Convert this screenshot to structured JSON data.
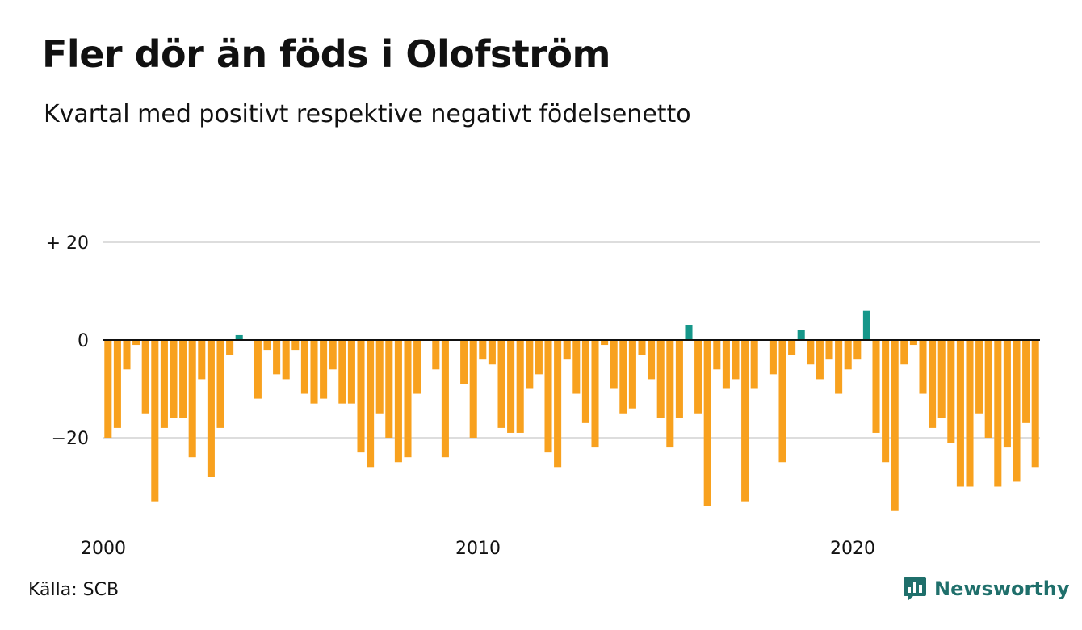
{
  "header": {
    "title": "Fler dör än föds i Olofström",
    "subtitle": "Kvartal med positivt respektive negativt födelsenetto"
  },
  "footer": {
    "source": "Källa: SCB",
    "brand": "Newsworthy"
  },
  "colors": {
    "negative": "#f8a11e",
    "positive": "#16978a",
    "grid": "#dddddd",
    "zero_line": "#111111",
    "brand": "#1f6f6b"
  },
  "icons": {
    "brand_logo": "newsworthy-logo-icon"
  },
  "chart_data": {
    "type": "bar",
    "title": "Fler dör än föds i Olofström",
    "subtitle": "Kvartal med positivt respektive negativt födelsenetto",
    "x_start": 2000,
    "periods_per_year": 4,
    "ylim": [
      -35,
      20
    ],
    "y_ticks": [
      {
        "value": 20,
        "label": "+ 20"
      },
      {
        "value": 0,
        "label": "0"
      },
      {
        "value": -20,
        "label": "−20"
      }
    ],
    "x_ticks": [
      {
        "value": 2000,
        "label": "2000"
      },
      {
        "value": 2010,
        "label": "2010"
      },
      {
        "value": 2020,
        "label": "2020"
      }
    ],
    "grid": true,
    "values": [
      -20,
      -18,
      -6,
      -1,
      -15,
      -33,
      -18,
      -16,
      -16,
      -24,
      -8,
      -28,
      -18,
      -3,
      1,
      0,
      -12,
      -2,
      -7,
      -8,
      -2,
      -11,
      -13,
      -12,
      -6,
      -13,
      -13,
      -23,
      -26,
      -15,
      -20,
      -25,
      -24,
      -11,
      0,
      -6,
      -24,
      0,
      -9,
      -20,
      -4,
      -5,
      -18,
      -19,
      -19,
      -10,
      -7,
      -23,
      -26,
      -4,
      -11,
      -17,
      -22,
      -1,
      -10,
      -15,
      -14,
      -3,
      -8,
      -16,
      -22,
      -16,
      3,
      -15,
      -34,
      -6,
      -10,
      -8,
      -33,
      -10,
      0,
      -7,
      -25,
      -3,
      2,
      -5,
      -8,
      -4,
      -11,
      -6,
      -4,
      6,
      -19,
      -25,
      -35,
      -5,
      -1,
      -11,
      -18,
      -16,
      -21,
      -30,
      -30,
      -15,
      -20,
      -30,
      -22,
      -29,
      -17,
      -26
    ]
  }
}
